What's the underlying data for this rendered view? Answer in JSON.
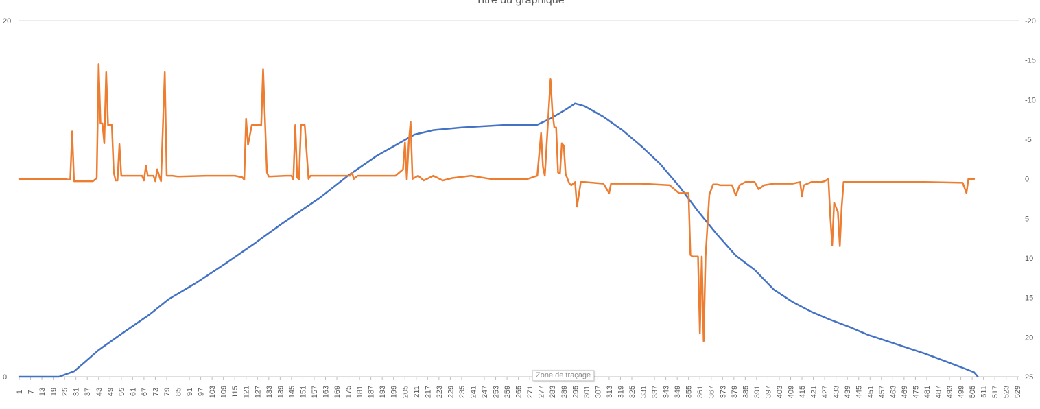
{
  "chart_data": {
    "type": "line",
    "title": "Titre du graphique",
    "x_ticks": [
      "1",
      "7",
      "13",
      "19",
      "25",
      "31",
      "37",
      "43",
      "49",
      "55",
      "61",
      "67",
      "73",
      "79",
      "85",
      "91",
      "97",
      "103",
      "109",
      "115",
      "121",
      "127",
      "133",
      "139",
      "145",
      "151",
      "157",
      "163",
      "169",
      "175",
      "181",
      "187",
      "193",
      "199",
      "205",
      "211",
      "217",
      "223",
      "229",
      "235",
      "241",
      "247",
      "253",
      "259",
      "265",
      "271",
      "277",
      "283",
      "289",
      "295",
      "301",
      "307",
      "313",
      "319",
      "325",
      "331",
      "337",
      "343",
      "349",
      "355",
      "361",
      "367",
      "373",
      "379",
      "385",
      "391",
      "397",
      "403",
      "409",
      "415",
      "421",
      "427",
      "433",
      "439",
      "445",
      "451",
      "457",
      "463",
      "469",
      "475",
      "481",
      "487",
      "493",
      "499",
      "505",
      "511",
      "517",
      "523",
      "529"
    ],
    "x_range": [
      1,
      530
    ],
    "y_left": {
      "range": [
        0,
        20
      ],
      "ticks": [
        "0",
        "20"
      ]
    },
    "y_right": {
      "range": [
        25,
        -20
      ],
      "reversed": true,
      "ticks": [
        "-20",
        "-15",
        "-10",
        "-5",
        "0",
        "5",
        "10",
        "15",
        "20",
        "25"
      ]
    },
    "grid": true,
    "series": [
      {
        "axis": "left",
        "color": "#4472C4",
        "points": [
          [
            1,
            0
          ],
          [
            22,
            0
          ],
          [
            26,
            0.15
          ],
          [
            30,
            0.3
          ],
          [
            36,
            0.85
          ],
          [
            43,
            1.5
          ],
          [
            55,
            2.4
          ],
          [
            70,
            3.5
          ],
          [
            80,
            4.35
          ],
          [
            95,
            5.3
          ],
          [
            110,
            6.35
          ],
          [
            125,
            7.45
          ],
          [
            140,
            8.6
          ],
          [
            160,
            10.05
          ],
          [
            175,
            11.3
          ],
          [
            190,
            12.4
          ],
          [
            200,
            13.0
          ],
          [
            210,
            13.6
          ],
          [
            220,
            13.85
          ],
          [
            235,
            14.0
          ],
          [
            260,
            14.15
          ],
          [
            275,
            14.15
          ],
          [
            282,
            14.5
          ],
          [
            290,
            15.0
          ],
          [
            295,
            15.35
          ],
          [
            300,
            15.2
          ],
          [
            310,
            14.6
          ],
          [
            320,
            13.85
          ],
          [
            330,
            12.95
          ],
          [
            340,
            11.95
          ],
          [
            350,
            10.7
          ],
          [
            360,
            9.3
          ],
          [
            370,
            8.0
          ],
          [
            380,
            6.8
          ],
          [
            390,
            6.0
          ],
          [
            400,
            4.9
          ],
          [
            410,
            4.2
          ],
          [
            420,
            3.65
          ],
          [
            430,
            3.2
          ],
          [
            440,
            2.8
          ],
          [
            450,
            2.35
          ],
          [
            460,
            2.0
          ],
          [
            470,
            1.65
          ],
          [
            480,
            1.3
          ],
          [
            490,
            0.9
          ],
          [
            500,
            0.5
          ],
          [
            506,
            0.25
          ],
          [
            508,
            0
          ]
        ]
      },
      {
        "axis": "right",
        "color": "#ED7D31",
        "points": [
          [
            1,
            0
          ],
          [
            25,
            0
          ],
          [
            27,
            0.1
          ],
          [
            28,
            0.1
          ],
          [
            29,
            -6
          ],
          [
            30,
            0.3
          ],
          [
            40,
            0.3
          ],
          [
            42,
            -0.1
          ],
          [
            43,
            -14.5
          ],
          [
            44,
            -7
          ],
          [
            45,
            -7
          ],
          [
            46,
            -4.5
          ],
          [
            47,
            -13.5
          ],
          [
            48,
            -6.8
          ],
          [
            50,
            -6.8
          ],
          [
            51,
            -0.8
          ],
          [
            52,
            0.2
          ],
          [
            53,
            0.2
          ],
          [
            54,
            -4.4
          ],
          [
            55,
            -0.4
          ],
          [
            60,
            -0.4
          ],
          [
            66,
            -0.4
          ],
          [
            67,
            0.2
          ],
          [
            68,
            -1.7
          ],
          [
            69,
            -0.4
          ],
          [
            72,
            -0.4
          ],
          [
            73,
            0.3
          ],
          [
            74,
            -1.2
          ],
          [
            75,
            -0.4
          ],
          [
            76,
            0.3
          ],
          [
            78,
            -13.5
          ],
          [
            79,
            -0.4
          ],
          [
            82,
            -0.4
          ],
          [
            85,
            -0.3
          ],
          [
            100,
            -0.4
          ],
          [
            115,
            -0.4
          ],
          [
            119,
            -0.2
          ],
          [
            120,
            0.1
          ],
          [
            121,
            -7.6
          ],
          [
            122,
            -4.3
          ],
          [
            124,
            -6.8
          ],
          [
            127,
            -6.8
          ],
          [
            129,
            -6.8
          ],
          [
            130,
            -13.9
          ],
          [
            132,
            -0.8
          ],
          [
            133,
            -0.3
          ],
          [
            142,
            -0.4
          ],
          [
            145,
            -0.4
          ],
          [
            146,
            0.1
          ],
          [
            147,
            -6.8
          ],
          [
            148,
            -0.2
          ],
          [
            149,
            0.1
          ],
          [
            150,
            -6.8
          ],
          [
            152,
            -6.8
          ],
          [
            154,
            0
          ],
          [
            155,
            -0.4
          ],
          [
            170,
            -0.4
          ],
          [
            176,
            -0.4
          ],
          [
            177,
            -0.8
          ],
          [
            178,
            0
          ],
          [
            180,
            -0.4
          ],
          [
            200,
            -0.4
          ],
          [
            204,
            -1.2
          ],
          [
            205,
            -4.6
          ],
          [
            206,
            0.1
          ],
          [
            207,
            -4.6
          ],
          [
            208,
            -7.2
          ],
          [
            209,
            0
          ],
          [
            212,
            -0.4
          ],
          [
            215,
            0.2
          ],
          [
            220,
            -0.4
          ],
          [
            225,
            0.2
          ],
          [
            230,
            -0.1
          ],
          [
            240,
            -0.4
          ],
          [
            250,
            0
          ],
          [
            270,
            0
          ],
          [
            275,
            -0.4
          ],
          [
            277,
            -5.8
          ],
          [
            278,
            -1.5
          ],
          [
            279,
            -0.4
          ],
          [
            282,
            -12.6
          ],
          [
            283,
            -8.5
          ],
          [
            284,
            -6.5
          ],
          [
            285,
            -6.5
          ],
          [
            286,
            -0.8
          ],
          [
            287,
            -0.7
          ],
          [
            288,
            -4.5
          ],
          [
            289,
            -4.2
          ],
          [
            290,
            -0.6
          ],
          [
            292,
            0.6
          ],
          [
            293,
            0.8
          ],
          [
            294,
            0.6
          ],
          [
            295,
            0.4
          ],
          [
            296,
            3.5
          ],
          [
            298,
            0.4
          ],
          [
            300,
            0.4
          ],
          [
            310,
            0.6
          ],
          [
            313,
            1.8
          ],
          [
            314,
            0.6
          ],
          [
            330,
            0.6
          ],
          [
            345,
            0.8
          ],
          [
            350,
            1.8
          ],
          [
            355,
            1.8
          ],
          [
            356,
            9.6
          ],
          [
            357,
            9.8
          ],
          [
            360,
            9.8
          ],
          [
            361,
            19.5
          ],
          [
            362,
            9.8
          ],
          [
            363,
            20.5
          ],
          [
            364,
            9.8
          ],
          [
            366,
            2
          ],
          [
            368,
            0.7
          ],
          [
            370,
            0.7
          ],
          [
            372,
            0.8
          ],
          [
            375,
            0.8
          ],
          [
            378,
            0.8
          ],
          [
            380,
            2.1
          ],
          [
            382,
            0.8
          ],
          [
            385,
            0.4
          ],
          [
            389,
            0.4
          ],
          [
            390,
            0.4
          ],
          [
            392,
            1.3
          ],
          [
            395,
            0.8
          ],
          [
            400,
            0.6
          ],
          [
            410,
            0.6
          ],
          [
            414,
            0.4
          ],
          [
            415,
            2.2
          ],
          [
            416,
            0.8
          ],
          [
            420,
            0.4
          ],
          [
            425,
            0.4
          ],
          [
            427,
            0.3
          ],
          [
            429,
            0
          ],
          [
            430,
            4.8
          ],
          [
            431,
            8.4
          ],
          [
            432,
            3
          ],
          [
            433,
            3.6
          ],
          [
            434,
            4.2
          ],
          [
            435,
            8.5
          ],
          [
            436,
            3.6
          ],
          [
            437,
            0.4
          ],
          [
            438,
            0.4
          ],
          [
            442,
            0.4
          ],
          [
            460,
            0.4
          ],
          [
            480,
            0.4
          ],
          [
            500,
            0.5
          ],
          [
            502,
            1.8
          ],
          [
            503,
            0
          ],
          [
            506,
            0
          ]
        ]
      }
    ]
  },
  "overlay": {
    "tooltip": "Zone de traçage"
  }
}
